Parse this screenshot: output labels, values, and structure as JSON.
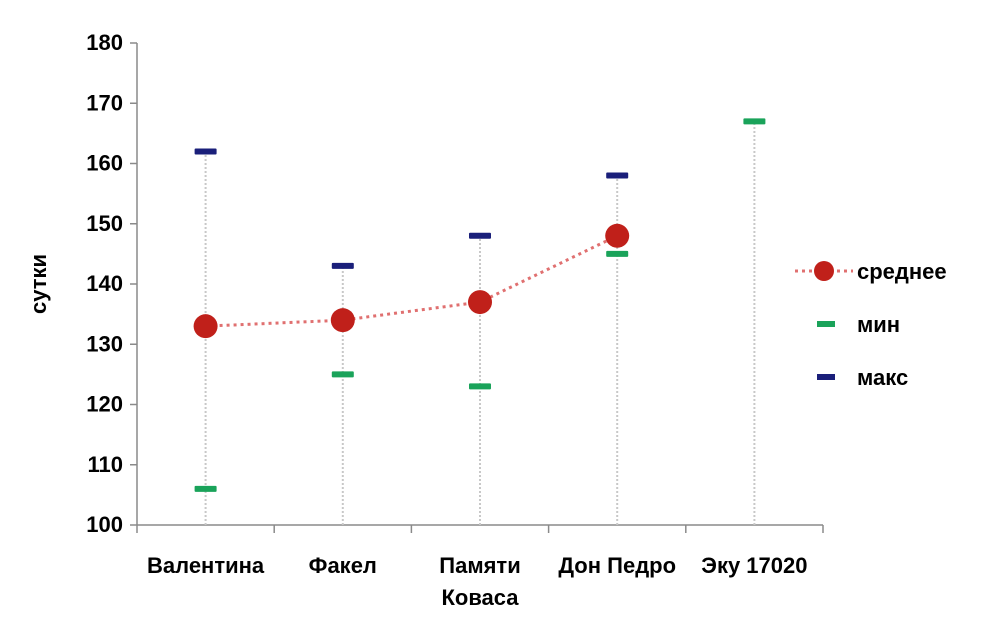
{
  "chart_data": {
    "type": "line",
    "ylabel": "сутки",
    "xlabel": "",
    "ylim": [
      100,
      180
    ],
    "yticks": [
      100,
      110,
      120,
      130,
      140,
      150,
      160,
      170,
      180
    ],
    "categories": [
      [
        "Валентина"
      ],
      [
        "Факел"
      ],
      [
        "Памяти",
        "Коваса"
      ],
      [
        "Дон Педро"
      ],
      [
        "Эку 17020"
      ]
    ],
    "series": [
      {
        "name": "среднее",
        "values": [
          133,
          134,
          137,
          148,
          null
        ],
        "color": "#c0201a",
        "style": "dotted-line-with-circle-markers"
      },
      {
        "name": "мин",
        "values": [
          106,
          125,
          123,
          145,
          167
        ],
        "color": "#1aa35a",
        "style": "dash-marker"
      },
      {
        "name": "макс",
        "values": [
          162,
          143,
          148,
          158,
          null
        ],
        "color": "#1a1f7a",
        "style": "dash-marker"
      }
    ],
    "range_lines": {
      "color": "#c8c8c8",
      "style": "dotted"
    },
    "grid": false,
    "legend_position": "right"
  }
}
